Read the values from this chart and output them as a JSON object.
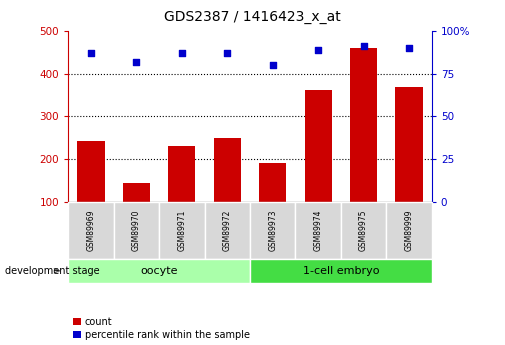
{
  "title": "GDS2387 / 1416423_x_at",
  "samples": [
    "GSM89969",
    "GSM89970",
    "GSM89971",
    "GSM89972",
    "GSM89973",
    "GSM89974",
    "GSM89975",
    "GSM89999"
  ],
  "counts": [
    242,
    143,
    230,
    250,
    190,
    363,
    460,
    370
  ],
  "percentiles": [
    87,
    82,
    87,
    87,
    80,
    89,
    91,
    90
  ],
  "bar_color": "#cc0000",
  "scatter_color": "#0000cc",
  "ylim_left": [
    100,
    500
  ],
  "ylim_right": [
    0,
    100
  ],
  "yticks_left": [
    100,
    200,
    300,
    400,
    500
  ],
  "yticks_right": [
    0,
    25,
    50,
    75,
    100
  ],
  "yticklabels_right": [
    "0",
    "25",
    "50",
    "75",
    "100%"
  ],
  "grid_lines": [
    200,
    300,
    400
  ],
  "groups": [
    {
      "label": "oocyte",
      "indices": [
        0,
        1,
        2,
        3
      ],
      "color": "#aaffaa"
    },
    {
      "label": "1-cell embryo",
      "indices": [
        4,
        5,
        6,
        7
      ],
      "color": "#44dd44"
    }
  ],
  "group_label": "development stage",
  "legend_count_label": "count",
  "legend_pct_label": "percentile rank within the sample",
  "title_fontsize": 10,
  "tick_color_left": "#cc0000",
  "tick_color_right": "#0000cc",
  "bar_width": 0.6,
  "scatter_size": 18
}
